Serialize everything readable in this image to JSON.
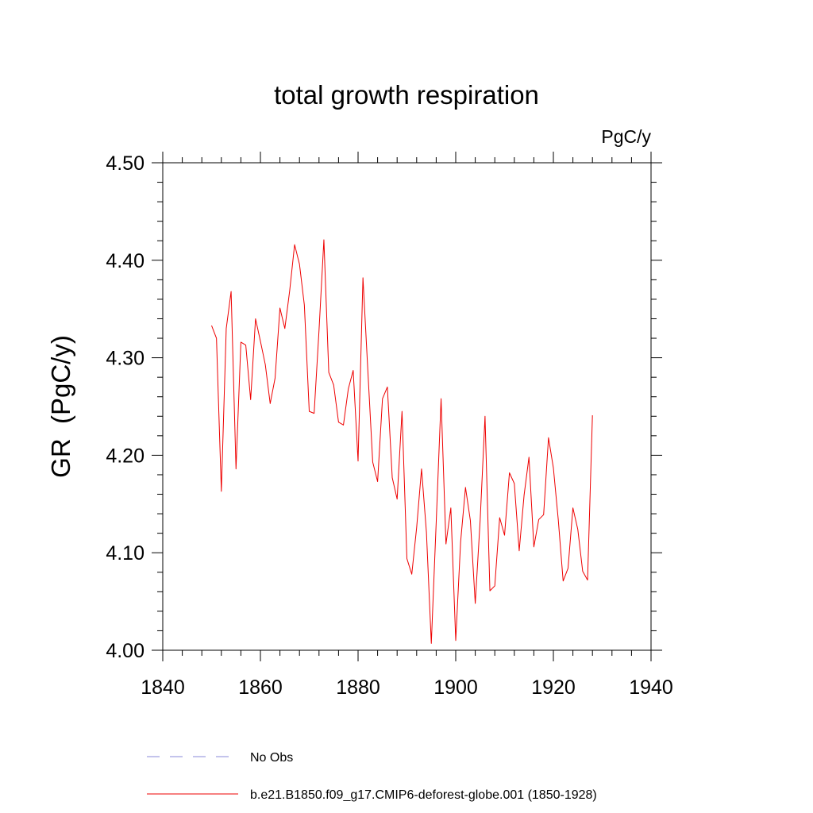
{
  "chart_data": {
    "type": "line",
    "title": "total growth respiration",
    "units": "PgC/y",
    "ylabel": "GR  (PgC/y)",
    "xlabel": "",
    "xlim": [
      1840,
      1940
    ],
    "ylim": [
      4.0,
      4.5
    ],
    "xticks": [
      1840,
      1860,
      1880,
      1900,
      1920,
      1940
    ],
    "xtick_labels": [
      "1840",
      "1860",
      "1880",
      "1900",
      "1920",
      "1940"
    ],
    "yticks": [
      4.0,
      4.1,
      4.2,
      4.3,
      4.4,
      4.5
    ],
    "ytick_labels": [
      "4.00",
      "4.10",
      "4.20",
      "4.30",
      "4.40",
      "4.50"
    ],
    "x_minor_step": 4,
    "y_minor_step": 0.02,
    "grid": false,
    "legend_position": "bottom-left",
    "legend": [
      {
        "label": "No Obs",
        "style": "dashed",
        "color": "#8888d8"
      },
      {
        "label": "b.e21.B1850.f09_g17.CMIP6-deforest-globe.001 (1850-1928)",
        "style": "solid",
        "color": "#ee0000"
      }
    ],
    "series": [
      {
        "name": "b.e21.B1850.f09_g17.CMIP6-deforest-globe.001 (1850-1928)",
        "color": "#ee0000",
        "x": [
          1850,
          1851,
          1852,
          1853,
          1854,
          1855,
          1856,
          1857,
          1858,
          1859,
          1860,
          1861,
          1862,
          1863,
          1864,
          1865,
          1866,
          1867,
          1868,
          1869,
          1870,
          1871,
          1872,
          1873,
          1874,
          1875,
          1876,
          1877,
          1878,
          1879,
          1880,
          1881,
          1882,
          1883,
          1884,
          1885,
          1886,
          1887,
          1888,
          1889,
          1890,
          1891,
          1892,
          1893,
          1894,
          1895,
          1896,
          1897,
          1898,
          1899,
          1900,
          1901,
          1902,
          1903,
          1904,
          1905,
          1906,
          1907,
          1908,
          1909,
          1910,
          1911,
          1912,
          1913,
          1914,
          1915,
          1916,
          1917,
          1918,
          1919,
          1920,
          1921,
          1922,
          1923,
          1924,
          1925,
          1926,
          1927,
          1928
        ],
        "values": [
          4.333,
          4.32,
          4.163,
          4.33,
          4.368,
          4.186,
          4.316,
          4.313,
          4.257,
          4.34,
          4.317,
          4.293,
          4.253,
          4.279,
          4.351,
          4.33,
          4.369,
          4.416,
          4.396,
          4.354,
          4.245,
          4.243,
          4.328,
          4.421,
          4.285,
          4.272,
          4.234,
          4.231,
          4.268,
          4.287,
          4.194,
          4.382,
          4.287,
          4.193,
          4.173,
          4.258,
          4.27,
          4.177,
          4.155,
          4.245,
          4.094,
          4.078,
          4.126,
          4.186,
          4.121,
          4.007,
          4.131,
          4.258,
          4.109,
          4.146,
          4.01,
          4.111,
          4.167,
          4.133,
          4.048,
          4.133,
          4.24,
          4.061,
          4.066,
          4.136,
          4.118,
          4.182,
          4.171,
          4.102,
          4.159,
          4.198,
          4.106,
          4.134,
          4.139,
          4.218,
          4.187,
          4.134,
          4.071,
          4.084,
          4.146,
          4.124,
          4.081,
          4.072,
          4.241
        ]
      }
    ]
  }
}
